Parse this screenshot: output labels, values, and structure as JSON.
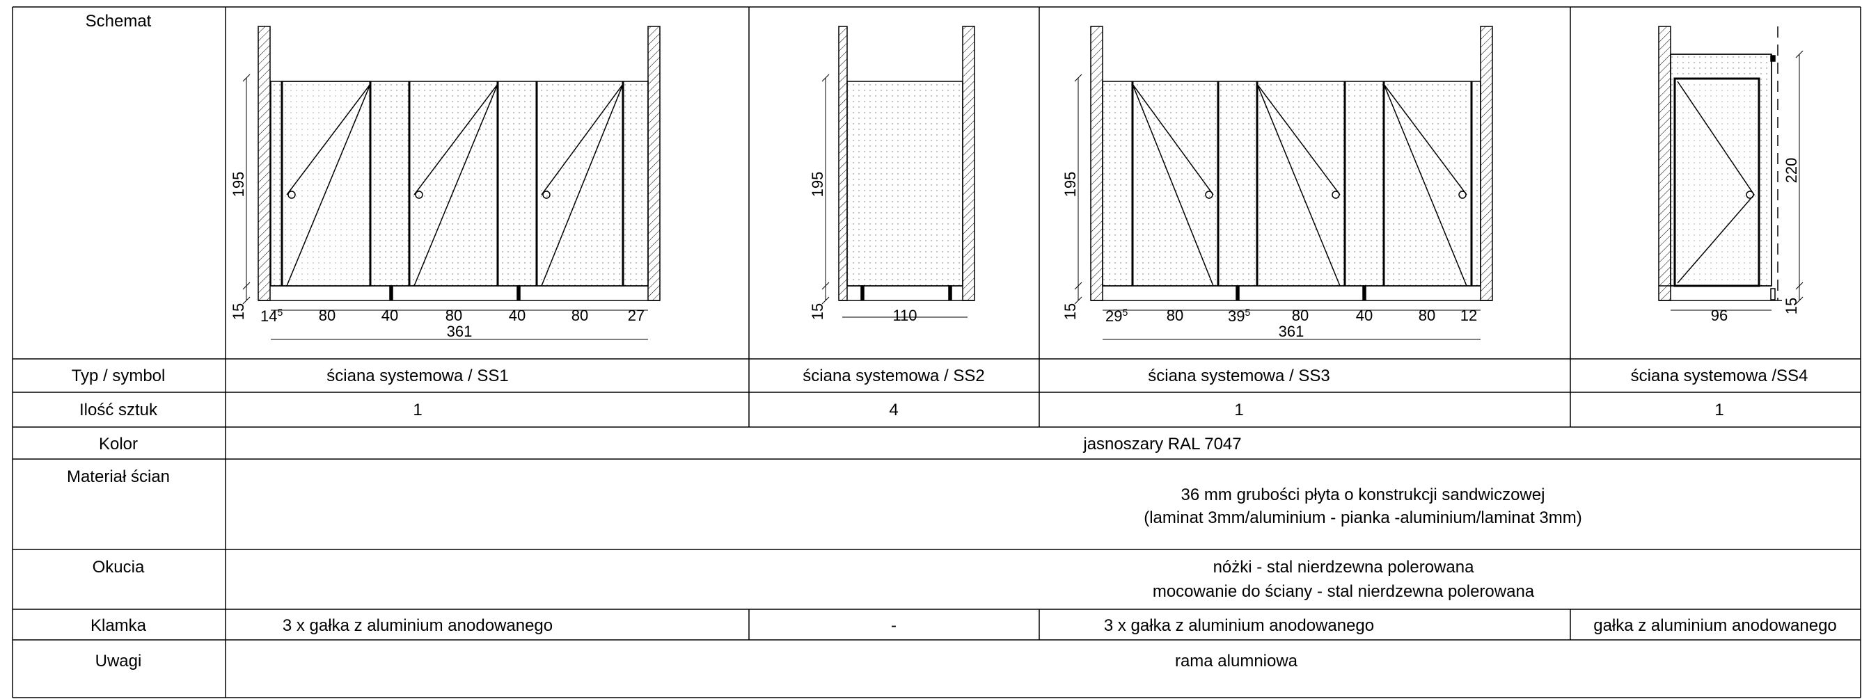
{
  "rows": {
    "schemat": "Schemat",
    "typ": "Typ / symbol",
    "ilosc": "Ilość sztuk",
    "kolor": "Kolor",
    "material": "Materiał ścian",
    "okucia": "Okucia",
    "klamka": "Klamka",
    "uwagi": "Uwagi"
  },
  "types": {
    "ss1": "ściana systemowa / SS1",
    "ss2": "ściana systemowa / SS2",
    "ss3": "ściana systemowa / SS3",
    "ss4": "ściana systemowa /SS4"
  },
  "quantities": {
    "ss1": "1",
    "ss2": "4",
    "ss3": "1",
    "ss4": "1"
  },
  "kolor_value": "jasnoszary RAL 7047",
  "material_lines": [
    "36 mm grubości płyta o konstrukcji sandwiczowej",
    "(laminat 3mm/aluminium - pianka -aluminium/laminat 3mm)"
  ],
  "okucia_lines": [
    "nóżki - stal nierdzewna polerowana",
    "mocowanie do ściany - stal  nierdzewna polerowana"
  ],
  "klamka": {
    "ss1": "3 x gałka z aluminium anodowanego",
    "ss2": "-",
    "ss3": "3 x gałka z aluminium anodowanego",
    "ss4": "gałka z aluminium anodowanego"
  },
  "uwagi_value": "rama alumniowa",
  "dims": {
    "ss1": {
      "height": "195",
      "foot": "15",
      "left_main": "14",
      "left_sup": "5",
      "segments": [
        "80",
        "40",
        "80",
        "40",
        "80",
        "27"
      ],
      "total": "361"
    },
    "ss2": {
      "height": "195",
      "foot": "15",
      "width": "110"
    },
    "ss3": {
      "height": "195",
      "foot": "15",
      "seg1_main": "29",
      "seg1_sup": "5",
      "seg2": "80",
      "seg3_main": "39",
      "seg3_sup": "5",
      "segments_rest": [
        "80",
        "40",
        "80",
        "12"
      ],
      "total": "361"
    },
    "ss4": {
      "height": "220",
      "foot": "15",
      "width": "96"
    }
  },
  "colors": {
    "line": "#000000",
    "fill_dot": "#9a9a9a"
  }
}
